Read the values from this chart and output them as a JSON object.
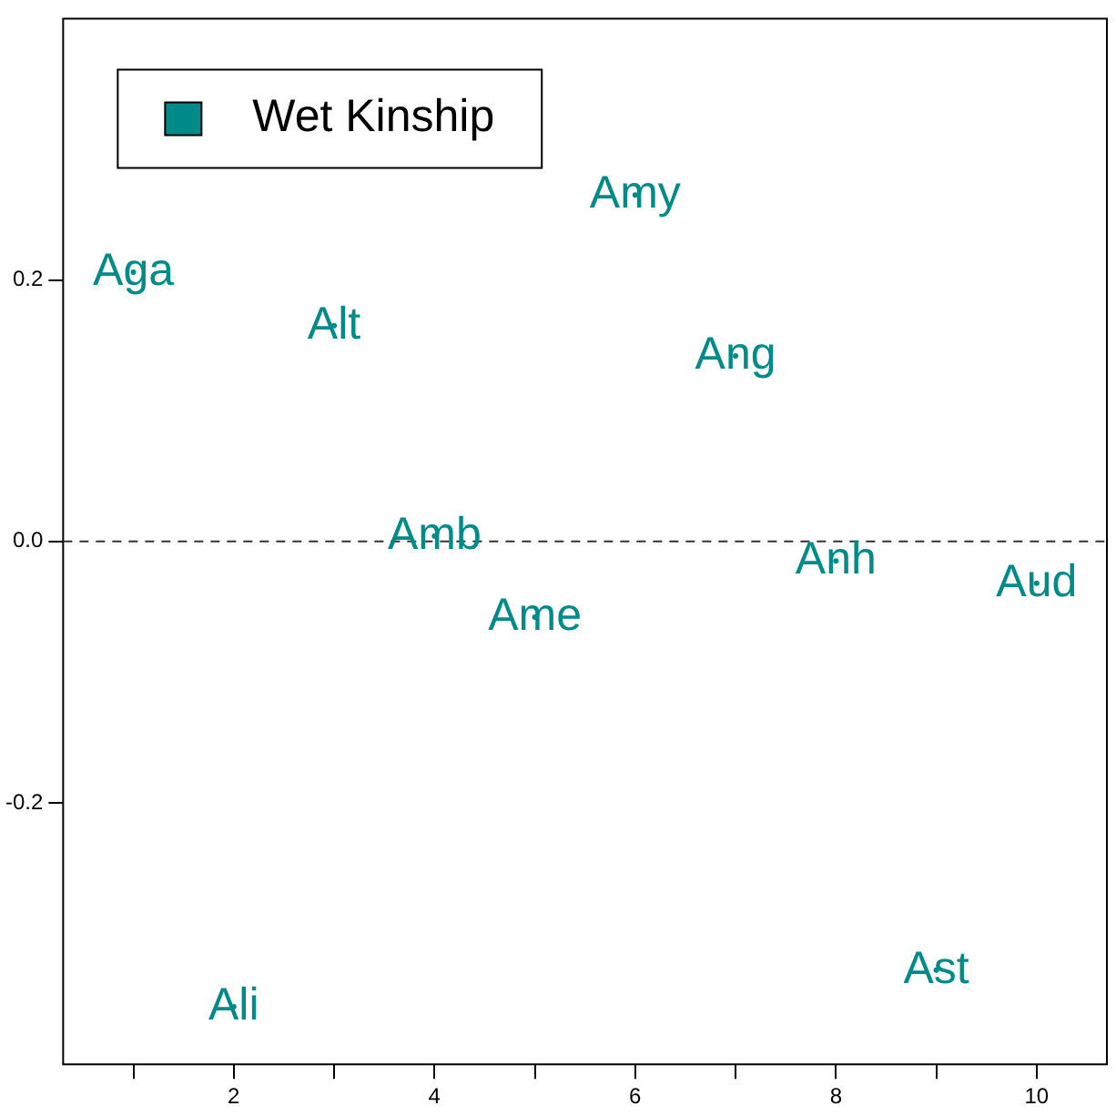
{
  "chart_data": {
    "type": "scatter",
    "x": [
      1,
      2,
      3,
      4,
      5,
      6,
      7,
      8,
      9,
      10
    ],
    "series": [
      {
        "name": "Wet Kinship",
        "color": "#008b8b",
        "values": [
          0.206,
          -0.356,
          0.165,
          0.004,
          -0.058,
          0.265,
          0.142,
          -0.015,
          -0.328,
          -0.032
        ],
        "value_labels": [
          "Aga",
          "Ali",
          "Alt",
          "Amb",
          "Ame",
          "Amy",
          "Ang",
          "Anh",
          "Ast",
          "Aud"
        ]
      }
    ],
    "xlim": [
      0.3,
      10.7
    ],
    "ylim": [
      -0.4,
      0.4
    ],
    "xticks": [
      {
        "value": 1,
        "label": null
      },
      2,
      {
        "value": 3,
        "label": null
      },
      4,
      {
        "value": 5,
        "label": null
      },
      6,
      {
        "value": 7,
        "label": null
      },
      8,
      {
        "value": 9,
        "label": null
      },
      10
    ],
    "yticks": [
      -0.2,
      {
        "value": 0,
        "label": "0.0"
      },
      0.2
    ],
    "ref_lines": [
      {
        "axis": "y",
        "value": 0,
        "line_style": "dashed",
        "color": "#333333"
      }
    ],
    "legend": "top left",
    "grid": false
  }
}
